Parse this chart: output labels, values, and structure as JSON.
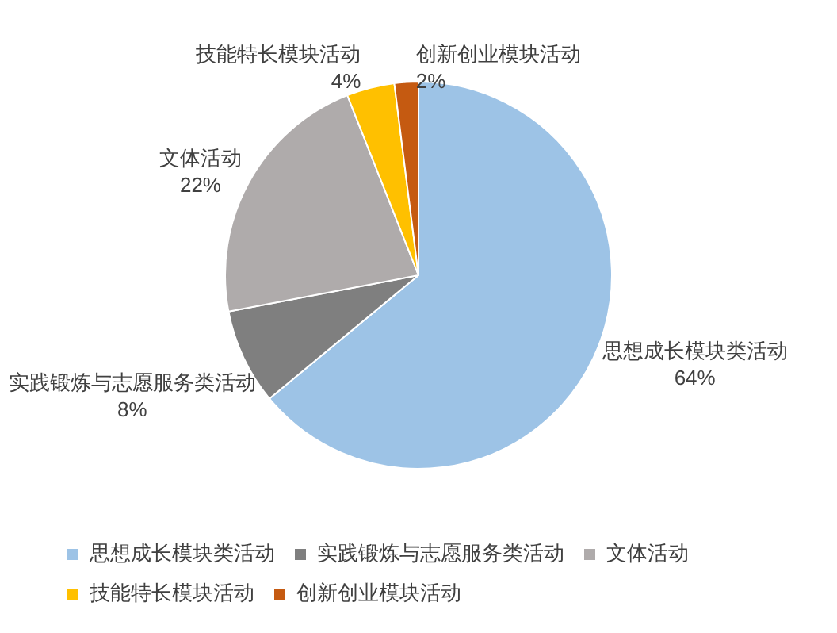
{
  "chart_data": {
    "type": "pie",
    "categories": [
      "思想成长模块类活动",
      "实践锻炼与志愿服务类活动",
      "文体活动",
      "技能特长模块活动",
      "创新创业模块活动"
    ],
    "values": [
      64,
      8,
      22,
      4,
      2
    ],
    "value_labels": [
      "64%",
      "8%",
      "22%",
      "4%",
      "2%"
    ],
    "colors": [
      "#9dc3e6",
      "#7f7f7f",
      "#afabab",
      "#ffc000",
      "#c55a11"
    ],
    "legend": "bottom"
  }
}
